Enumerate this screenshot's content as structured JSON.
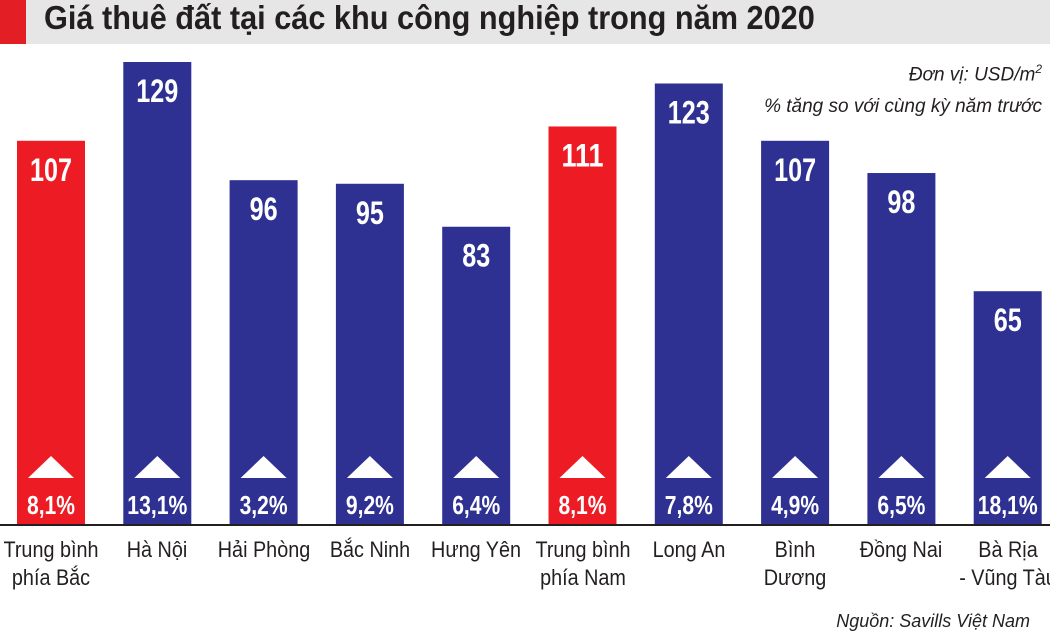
{
  "title": "Giá thuê đất tại các khu công nghiệp trong năm 2020",
  "unit_label": "Đơn vị: USD/m",
  "unit_superscript": "2",
  "growth_label": "% tăng so với cùng kỳ năm trước",
  "source": "Nguồn: Savills Việt Nam",
  "colors": {
    "average": "#ed1c24",
    "province": "#2e3192",
    "title_accent": "#e31e24"
  },
  "chart_data": {
    "type": "bar",
    "title": "Giá thuê đất tại các khu công nghiệp trong năm 2020",
    "categories": [
      "Trung bình\nphía Bắc",
      "Hà Nội",
      "Hải Phòng",
      "Bắc Ninh",
      "Hưng Yên",
      "Trung bình\nphía Nam",
      "Long An",
      "Bình Dương",
      "Đồng Nai",
      "Bà Rịa\n- Vũng Tàu"
    ],
    "values": [
      107,
      129,
      96,
      95,
      83,
      111,
      123,
      107,
      98,
      65
    ],
    "value_labels": [
      "107",
      "129",
      "96",
      "95",
      "83",
      "111",
      "123",
      "107",
      "98",
      "65"
    ],
    "growth": [
      "8,1%",
      "13,1%",
      "3,2%",
      "9,2%",
      "6,4%",
      "8,1%",
      "7,8%",
      "4,9%",
      "6,5%",
      "18,1%"
    ],
    "highlight": [
      true,
      false,
      false,
      false,
      false,
      true,
      false,
      false,
      false,
      false
    ],
    "ylim": [
      0,
      129
    ],
    "grid": false,
    "legend": "none"
  }
}
